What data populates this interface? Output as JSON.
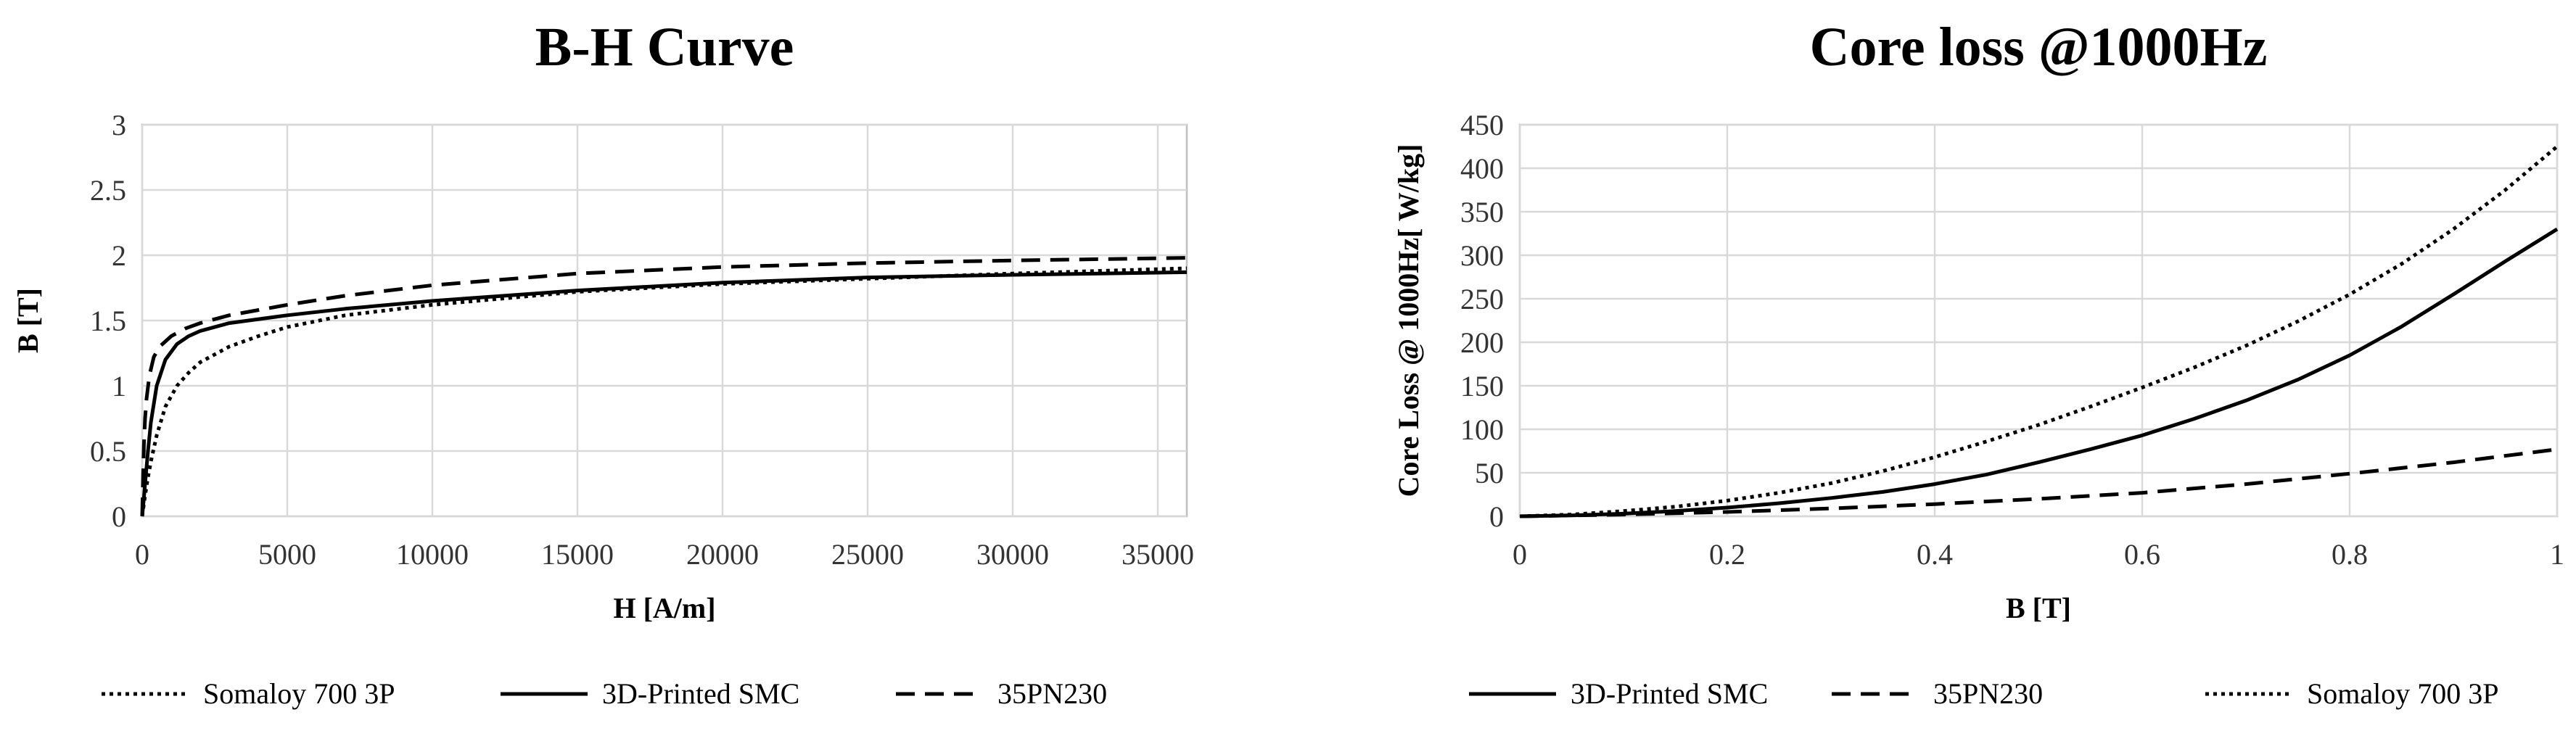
{
  "chart_data": [
    {
      "type": "line",
      "title": "B-H Curve",
      "xlabel": "H [A/m]",
      "ylabel": "B [T]",
      "xlim": [
        0,
        36000
      ],
      "ylim": [
        0,
        3
      ],
      "xticks": [
        0,
        5000,
        10000,
        15000,
        20000,
        25000,
        30000,
        35000
      ],
      "xtick_labels": [
        "0",
        "5000",
        "10000",
        "15000",
        "20000",
        "25000",
        "30000",
        "35000"
      ],
      "yticks": [
        0,
        0.5,
        1,
        1.5,
        2,
        2.5,
        3
      ],
      "ytick_labels": [
        "0",
        "0.5",
        "1",
        "1.5",
        "2",
        "2.5",
        "3"
      ],
      "grid": true,
      "legend_position": "bottom",
      "series": [
        {
          "name": "Somaloy 700 3P",
          "dash": "dotted",
          "x": [
            0,
            50,
            100,
            200,
            300,
            500,
            800,
            1200,
            1600,
            2000,
            3000,
            4000,
            5000,
            7000,
            10000,
            15000,
            20000,
            25000,
            30000,
            36000
          ],
          "y": [
            0,
            0.08,
            0.16,
            0.3,
            0.42,
            0.62,
            0.84,
            1.0,
            1.1,
            1.18,
            1.3,
            1.38,
            1.45,
            1.54,
            1.62,
            1.72,
            1.78,
            1.82,
            1.86,
            1.9
          ]
        },
        {
          "name": "3D-Printed SMC",
          "dash": "solid",
          "x": [
            0,
            50,
            100,
            200,
            300,
            500,
            800,
            1200,
            1600,
            2000,
            3000,
            5000,
            7000,
            10000,
            15000,
            20000,
            25000,
            30000,
            36000
          ],
          "y": [
            0,
            0.12,
            0.25,
            0.5,
            0.72,
            1.0,
            1.2,
            1.32,
            1.38,
            1.42,
            1.48,
            1.54,
            1.59,
            1.65,
            1.73,
            1.79,
            1.83,
            1.85,
            1.87
          ]
        },
        {
          "name": "35PN230",
          "dash": "dashed",
          "x": [
            0,
            30,
            60,
            100,
            150,
            250,
            400,
            600,
            1000,
            1500,
            2000,
            3000,
            5000,
            7000,
            10000,
            15000,
            20000,
            25000,
            30000,
            36000
          ],
          "y": [
            0,
            0.3,
            0.55,
            0.75,
            0.9,
            1.08,
            1.22,
            1.3,
            1.38,
            1.44,
            1.48,
            1.54,
            1.62,
            1.69,
            1.77,
            1.86,
            1.91,
            1.94,
            1.96,
            1.98
          ]
        }
      ]
    },
    {
      "type": "line",
      "title": "Core loss @1000Hz",
      "xlabel": "B [T]",
      "ylabel": "Core Loss @ 1000Hz[ W/kg]",
      "xlim": [
        0,
        1
      ],
      "ylim": [
        0,
        450
      ],
      "xticks": [
        0,
        0.2,
        0.4,
        0.6,
        0.8,
        1
      ],
      "xtick_labels": [
        "0",
        "0.2",
        "0.4",
        "0.6",
        "0.8",
        "1"
      ],
      "yticks": [
        0,
        50,
        100,
        150,
        200,
        250,
        300,
        350,
        400,
        450
      ],
      "ytick_labels": [
        "0",
        "50",
        "100",
        "150",
        "200",
        "250",
        "300",
        "350",
        "400",
        "450"
      ],
      "grid": true,
      "legend_position": "bottom",
      "series": [
        {
          "name": "3D-Printed SMC",
          "dash": "solid",
          "x": [
            0,
            0.05,
            0.1,
            0.15,
            0.2,
            0.25,
            0.3,
            0.35,
            0.4,
            0.45,
            0.5,
            0.55,
            0.6,
            0.65,
            0.7,
            0.75,
            0.8,
            0.85,
            0.9,
            0.95,
            1.0
          ],
          "y": [
            0,
            1,
            3,
            6,
            10,
            15,
            21,
            28,
            37,
            48,
            62,
            77,
            93,
            112,
            133,
            157,
            185,
            218,
            255,
            293,
            330
          ]
        },
        {
          "name": "35PN230",
          "dash": "dashed",
          "x": [
            0,
            0.1,
            0.2,
            0.3,
            0.4,
            0.5,
            0.6,
            0.7,
            0.8,
            0.9,
            1.0
          ],
          "y": [
            0,
            2,
            5,
            9,
            14,
            20,
            27,
            37,
            49,
            62,
            77
          ]
        },
        {
          "name": "Somaloy 700 3P",
          "dash": "dotted",
          "x": [
            0,
            0.05,
            0.1,
            0.15,
            0.2,
            0.25,
            0.3,
            0.35,
            0.4,
            0.45,
            0.5,
            0.55,
            0.6,
            0.65,
            0.7,
            0.75,
            0.8,
            0.85,
            0.9,
            0.95,
            1.0
          ],
          "y": [
            0,
            2,
            6,
            11,
            18,
            27,
            38,
            52,
            68,
            86,
            105,
            126,
            148,
            171,
            196,
            224,
            255,
            290,
            330,
            375,
            425
          ]
        }
      ]
    }
  ]
}
